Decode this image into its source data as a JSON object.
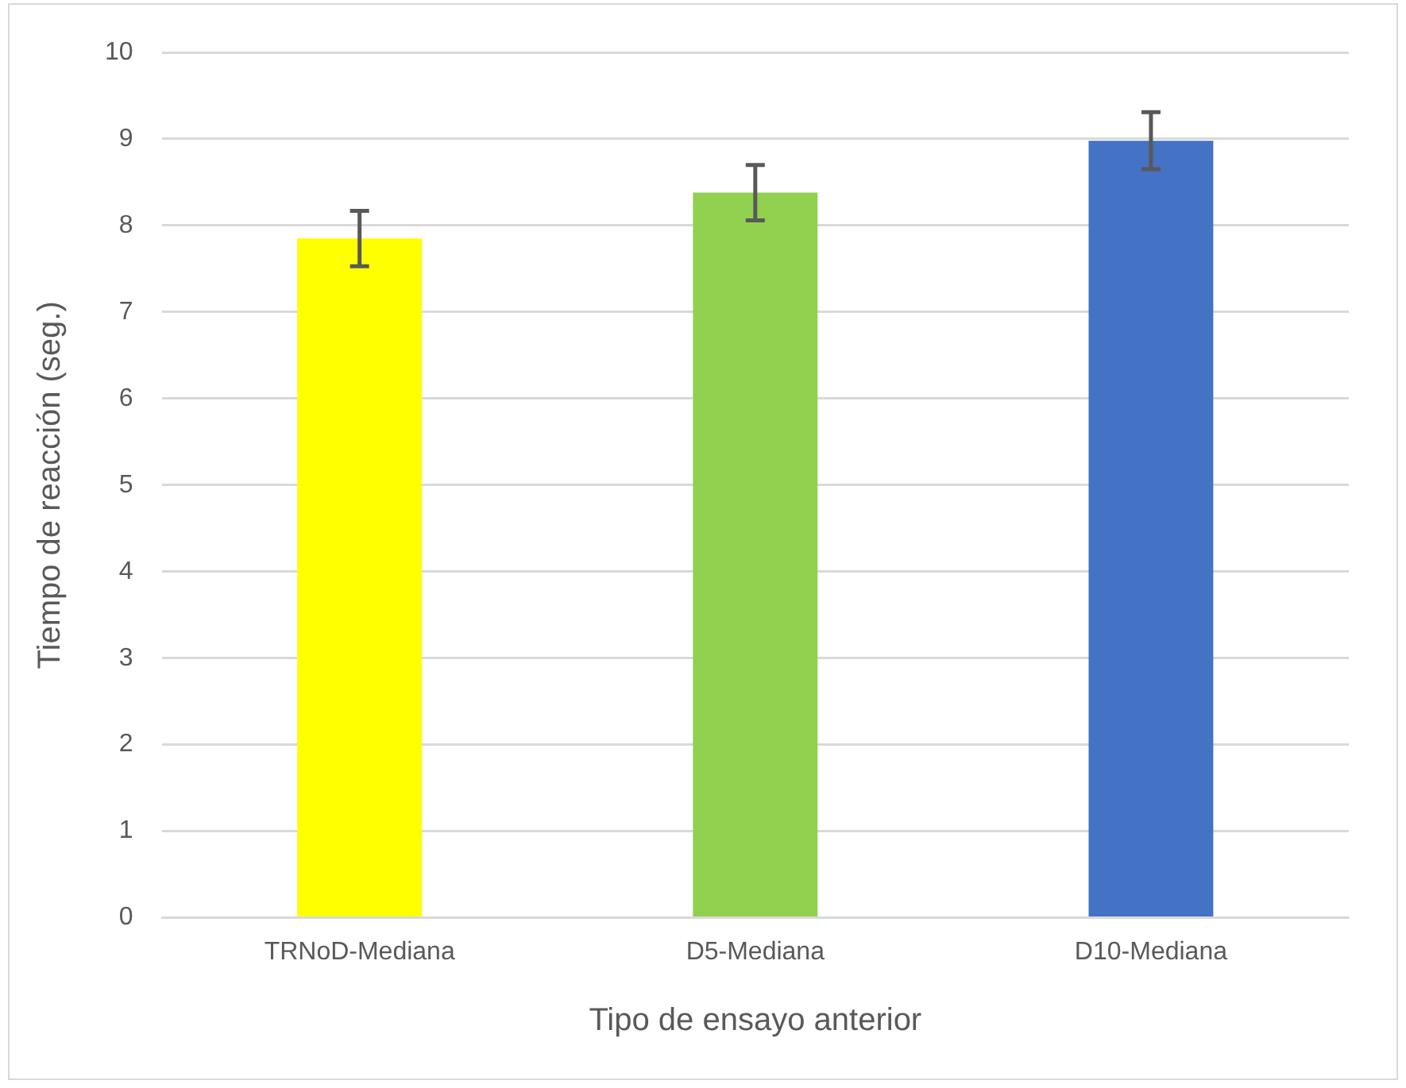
{
  "chart_data": {
    "type": "bar",
    "xlabel": "Tipo de ensayo anterior",
    "ylabel": "Tiempo de reacción (seg.)",
    "categories": [
      "TRNoD-Mediana",
      "D5-Mediana",
      "D10-Mediana"
    ],
    "values": [
      7.85,
      8.38,
      8.98
    ],
    "colors": [
      "#ffff00",
      "#92d050",
      "#4472c4"
    ],
    "errors": [
      0.32,
      0.32,
      0.33
    ],
    "ylim": [
      0,
      10
    ],
    "yticks": [
      0,
      1,
      2,
      3,
      4,
      5,
      6,
      7,
      8,
      9,
      10
    ],
    "grid": "y"
  }
}
